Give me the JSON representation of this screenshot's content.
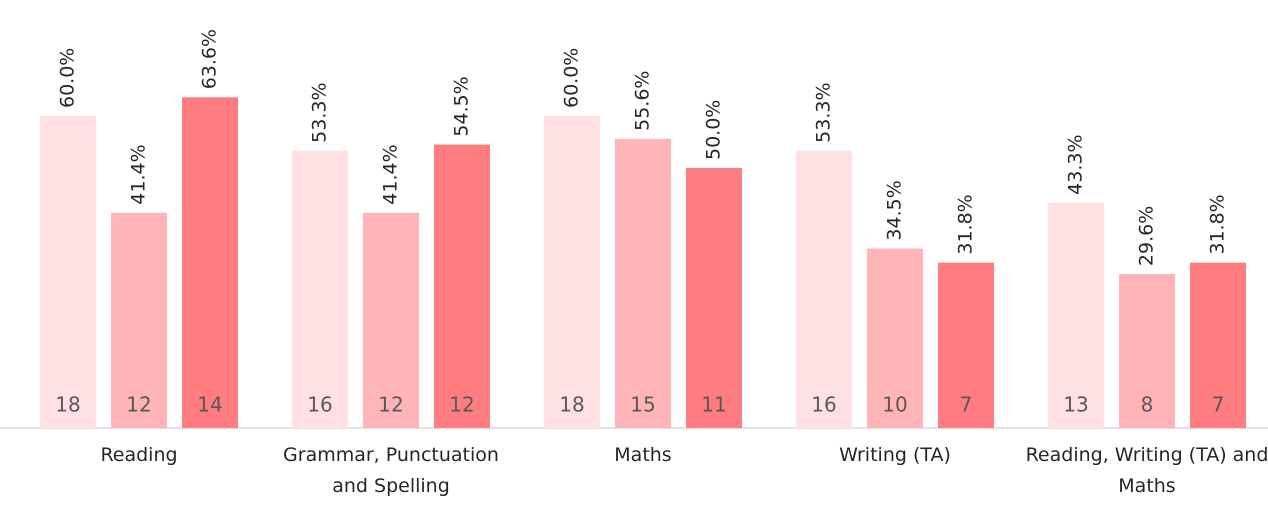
{
  "chart_data": {
    "type": "bar",
    "categories": [
      "Reading",
      "Grammar, Punctuation and Spelling",
      "Maths",
      "Writing (TA)",
      "Reading, Writing (TA) and Maths"
    ],
    "series": [
      {
        "color": "#ffe1e3",
        "values": [
          60.0,
          53.3,
          60.0,
          53.3,
          43.3
        ],
        "value_labels": [
          "60.0%",
          "53.3%",
          "60.0%",
          "53.3%",
          "43.3%"
        ],
        "counts": [
          18,
          16,
          18,
          16,
          13
        ]
      },
      {
        "color": "#ffb5b7",
        "values": [
          41.4,
          41.4,
          55.6,
          34.5,
          29.6
        ],
        "value_labels": [
          "41.4%",
          "41.4%",
          "55.6%",
          "34.5%",
          "29.6%"
        ],
        "counts": [
          12,
          12,
          15,
          10,
          8
        ]
      },
      {
        "color": "#ff7c81",
        "values": [
          63.6,
          54.5,
          50.0,
          31.8,
          31.8
        ],
        "value_labels": [
          "63.6%",
          "54.5%",
          "50.0%",
          "31.8%",
          "31.8%"
        ],
        "counts": [
          14,
          12,
          11,
          7,
          7
        ]
      }
    ]
  }
}
